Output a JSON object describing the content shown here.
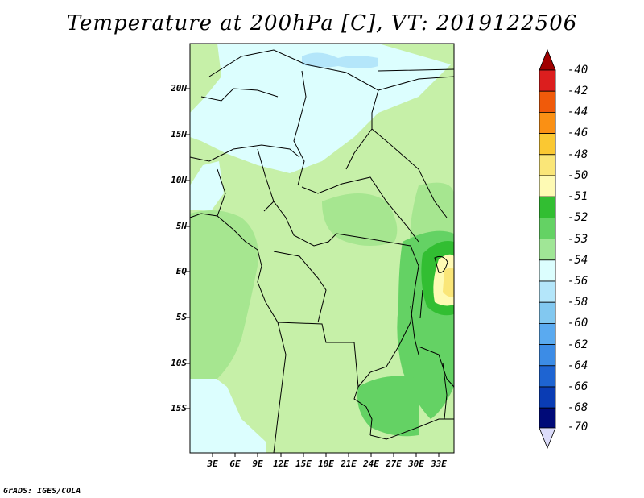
{
  "title": "Temperature at 200hPa [C], VT: 2019122506",
  "credit": "GrADS: IGES/COLA",
  "map": {
    "lat_labels": [
      "20N",
      "15N",
      "10N",
      "5N",
      "EQ",
      "5S",
      "10S",
      "15S"
    ],
    "lon_labels": [
      "3E",
      "6E",
      "9E",
      "12E",
      "15E",
      "18E",
      "21E",
      "24E",
      "27E",
      "30E",
      "33E"
    ]
  },
  "colorbar": {
    "labels": [
      "-40",
      "-42",
      "-44",
      "-46",
      "-48",
      "-50",
      "-51",
      "-52",
      "-53",
      "-54",
      "-56",
      "-58",
      "-60",
      "-62",
      "-64",
      "-66",
      "-68",
      "-70"
    ],
    "colors": [
      "#a00000",
      "#dc1e1e",
      "#f05a0a",
      "#fa9014",
      "#fac832",
      "#fae678",
      "#fefab4",
      "#32be32",
      "#64d264",
      "#a0e696",
      "#dcfefe",
      "#b4e6fa",
      "#82c8f0",
      "#5aaaf0",
      "#3c8ce6",
      "#1e64d2",
      "#0a3cb4",
      "#000a78",
      "#dcdcfa"
    ]
  }
}
